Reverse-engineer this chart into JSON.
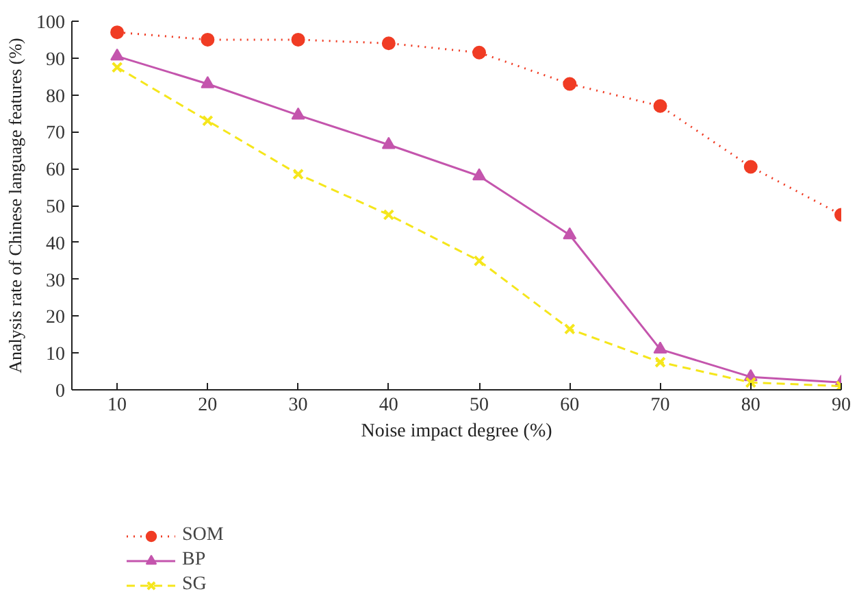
{
  "chart_data": {
    "type": "line",
    "xlabel": "Noise impact degree (%)",
    "ylabel": "Analysis rate of Chinese language features (%)",
    "x": [
      10,
      20,
      30,
      40,
      50,
      60,
      70,
      80,
      90
    ],
    "xlim": [
      5,
      90
    ],
    "xticks": [
      10,
      20,
      30,
      40,
      50,
      60,
      70,
      80,
      90
    ],
    "ylim": [
      0,
      100
    ],
    "yticks": [
      0,
      10,
      20,
      30,
      40,
      50,
      60,
      70,
      80,
      90,
      100
    ],
    "grid": false,
    "legend": "bottom left",
    "series": [
      {
        "name": "SOM",
        "color": "#f03c24",
        "marker": "circle",
        "line_style": "dotted",
        "values": [
          97,
          95,
          95,
          94,
          91.5,
          83,
          77,
          60.5,
          47.5
        ]
      },
      {
        "name": "BP",
        "color": "#c455ad",
        "marker": "triangle",
        "line_style": "solid",
        "values": [
          90.5,
          83,
          74.5,
          66.5,
          58,
          42,
          11,
          3.5,
          2
        ]
      },
      {
        "name": "SG",
        "color": "#f5e61c",
        "marker": "cross",
        "line_style": "dashed",
        "values": [
          87.5,
          73,
          58.5,
          47.5,
          35,
          16.5,
          7.5,
          2,
          1
        ]
      }
    ]
  }
}
